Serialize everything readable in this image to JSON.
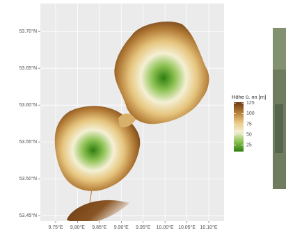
{
  "chart_data": {
    "type": "map",
    "xlim": [
      9.715,
      10.135
    ],
    "ylim": [
      53.4425,
      53.738
    ],
    "xticks": [
      {
        "value": 9.75,
        "label": "9.75°E"
      },
      {
        "value": 9.8,
        "label": "9.80°E"
      },
      {
        "value": 9.85,
        "label": "9.85°E"
      },
      {
        "value": 9.9,
        "label": "9.90°E"
      },
      {
        "value": 9.95,
        "label": "9.95°E"
      },
      {
        "value": 10.0,
        "label": "10.00°E"
      },
      {
        "value": 10.05,
        "label": "10.05°E"
      },
      {
        "value": 10.1,
        "label": "10.10°E"
      }
    ],
    "yticks": [
      {
        "value": 53.45,
        "label": "53.45°N"
      },
      {
        "value": 53.5,
        "label": "53.50°N"
      },
      {
        "value": 53.55,
        "label": "53.55°N"
      },
      {
        "value": 53.6,
        "label": "53.60°N"
      },
      {
        "value": 53.65,
        "label": "53.65°N"
      },
      {
        "value": 53.7,
        "label": "53.70°N"
      }
    ],
    "grid": true,
    "legend": {
      "title": "Höhe ü. nn [m]",
      "lim": [
        10,
        127
      ],
      "ticks": [
        25,
        50,
        75,
        100,
        125
      ],
      "colors": [
        "#2f7d0f",
        "#8cc152",
        "#f4f0d4",
        "#e6c57e",
        "#b27b36",
        "#6a3812"
      ]
    }
  }
}
